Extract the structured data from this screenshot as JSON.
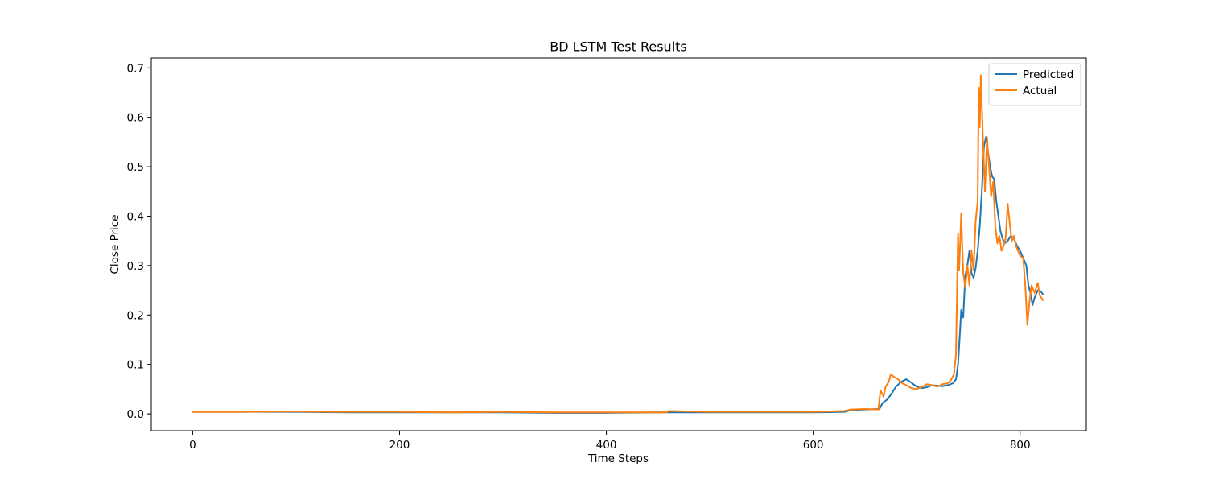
{
  "chart_data": {
    "type": "line",
    "title": "BD LSTM Test Results",
    "xlabel": "Time Steps",
    "ylabel": "Close Price",
    "xlim": [
      -40,
      864
    ],
    "ylim": [
      -0.034,
      0.72
    ],
    "xticks": [
      0,
      200,
      400,
      600,
      800
    ],
    "xtick_labels": [
      "0",
      "200",
      "400",
      "600",
      "800"
    ],
    "yticks": [
      0.0,
      0.1,
      0.2,
      0.3,
      0.4,
      0.5,
      0.6,
      0.7
    ],
    "ytick_labels": [
      "0.0",
      "0.1",
      "0.2",
      "0.3",
      "0.4",
      "0.5",
      "0.6",
      "0.7"
    ],
    "grid": false,
    "legend_position": "top-right",
    "series": [
      {
        "name": "Predicted",
        "color": "#1f77b4",
        "points": [
          [
            0,
            0.004
          ],
          [
            50,
            0.004
          ],
          [
            100,
            0.004
          ],
          [
            150,
            0.003
          ],
          [
            200,
            0.003
          ],
          [
            250,
            0.003
          ],
          [
            300,
            0.003
          ],
          [
            350,
            0.002
          ],
          [
            400,
            0.002
          ],
          [
            450,
            0.003
          ],
          [
            500,
            0.003
          ],
          [
            550,
            0.003
          ],
          [
            600,
            0.003
          ],
          [
            630,
            0.004
          ],
          [
            638,
            0.008
          ],
          [
            650,
            0.009
          ],
          [
            664,
            0.01
          ],
          [
            667,
            0.022
          ],
          [
            672,
            0.03
          ],
          [
            676,
            0.042
          ],
          [
            680,
            0.055
          ],
          [
            685,
            0.065
          ],
          [
            690,
            0.07
          ],
          [
            695,
            0.063
          ],
          [
            700,
            0.055
          ],
          [
            705,
            0.052
          ],
          [
            710,
            0.054
          ],
          [
            715,
            0.058
          ],
          [
            720,
            0.057
          ],
          [
            725,
            0.056
          ],
          [
            730,
            0.058
          ],
          [
            735,
            0.062
          ],
          [
            738,
            0.07
          ],
          [
            740,
            0.1
          ],
          [
            742,
            0.17
          ],
          [
            743,
            0.21
          ],
          [
            745,
            0.195
          ],
          [
            747,
            0.28
          ],
          [
            749,
            0.3
          ],
          [
            751,
            0.33
          ],
          [
            753,
            0.285
          ],
          [
            755,
            0.275
          ],
          [
            757,
            0.295
          ],
          [
            759,
            0.33
          ],
          [
            761,
            0.38
          ],
          [
            763,
            0.45
          ],
          [
            765,
            0.54
          ],
          [
            767,
            0.56
          ],
          [
            769,
            0.53
          ],
          [
            771,
            0.5
          ],
          [
            773,
            0.48
          ],
          [
            775,
            0.475
          ],
          [
            777,
            0.43
          ],
          [
            779,
            0.4
          ],
          [
            781,
            0.37
          ],
          [
            783,
            0.355
          ],
          [
            785,
            0.345
          ],
          [
            788,
            0.35
          ],
          [
            791,
            0.36
          ],
          [
            794,
            0.355
          ],
          [
            797,
            0.34
          ],
          [
            800,
            0.33
          ],
          [
            803,
            0.315
          ],
          [
            806,
            0.3
          ],
          [
            808,
            0.26
          ],
          [
            810,
            0.245
          ],
          [
            812,
            0.22
          ],
          [
            814,
            0.235
          ],
          [
            817,
            0.25
          ],
          [
            820,
            0.248
          ],
          [
            822,
            0.242
          ]
        ]
      },
      {
        "name": "Actual",
        "color": "#ff7f0e",
        "points": [
          [
            0,
            0.004
          ],
          [
            50,
            0.004
          ],
          [
            95,
            0.005
          ],
          [
            150,
            0.004
          ],
          [
            200,
            0.004
          ],
          [
            250,
            0.003
          ],
          [
            300,
            0.004
          ],
          [
            350,
            0.003
          ],
          [
            400,
            0.003
          ],
          [
            458,
            0.003
          ],
          [
            460,
            0.006
          ],
          [
            500,
            0.004
          ],
          [
            550,
            0.004
          ],
          [
            600,
            0.004
          ],
          [
            630,
            0.006
          ],
          [
            636,
            0.009
          ],
          [
            650,
            0.01
          ],
          [
            663,
            0.009
          ],
          [
            665,
            0.048
          ],
          [
            668,
            0.035
          ],
          [
            670,
            0.055
          ],
          [
            673,
            0.065
          ],
          [
            675,
            0.08
          ],
          [
            678,
            0.075
          ],
          [
            682,
            0.07
          ],
          [
            686,
            0.062
          ],
          [
            690,
            0.058
          ],
          [
            695,
            0.052
          ],
          [
            700,
            0.05
          ],
          [
            705,
            0.055
          ],
          [
            710,
            0.06
          ],
          [
            715,
            0.058
          ],
          [
            720,
            0.055
          ],
          [
            725,
            0.06
          ],
          [
            730,
            0.062
          ],
          [
            733,
            0.068
          ],
          [
            736,
            0.08
          ],
          [
            738,
            0.12
          ],
          [
            740,
            0.365
          ],
          [
            741,
            0.29
          ],
          [
            742,
            0.34
          ],
          [
            743,
            0.405
          ],
          [
            745,
            0.285
          ],
          [
            747,
            0.255
          ],
          [
            749,
            0.3
          ],
          [
            751,
            0.26
          ],
          [
            753,
            0.33
          ],
          [
            755,
            0.29
          ],
          [
            757,
            0.39
          ],
          [
            759,
            0.43
          ],
          [
            760,
            0.66
          ],
          [
            761,
            0.58
          ],
          [
            762,
            0.685
          ],
          [
            764,
            0.56
          ],
          [
            766,
            0.45
          ],
          [
            768,
            0.56
          ],
          [
            770,
            0.5
          ],
          [
            772,
            0.44
          ],
          [
            774,
            0.47
          ],
          [
            776,
            0.38
          ],
          [
            778,
            0.345
          ],
          [
            780,
            0.36
          ],
          [
            782,
            0.33
          ],
          [
            784,
            0.34
          ],
          [
            786,
            0.355
          ],
          [
            788,
            0.425
          ],
          [
            790,
            0.385
          ],
          [
            792,
            0.35
          ],
          [
            794,
            0.36
          ],
          [
            796,
            0.34
          ],
          [
            798,
            0.33
          ],
          [
            800,
            0.32
          ],
          [
            803,
            0.315
          ],
          [
            805,
            0.26
          ],
          [
            807,
            0.18
          ],
          [
            809,
            0.225
          ],
          [
            811,
            0.26
          ],
          [
            814,
            0.245
          ],
          [
            817,
            0.265
          ],
          [
            819,
            0.24
          ],
          [
            822,
            0.23
          ]
        ]
      }
    ]
  }
}
